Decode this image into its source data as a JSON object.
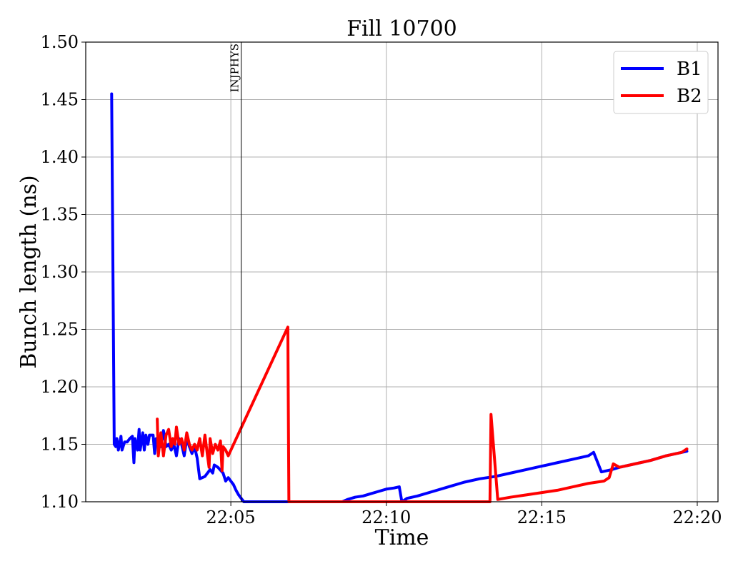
{
  "chart_data": {
    "type": "line",
    "title": "Fill 10700",
    "xlabel": "Time",
    "ylabel": "Bunch length (ns)",
    "xlim": [
      "22:00:20",
      "22:20:40"
    ],
    "ylim": [
      1.1,
      1.5
    ],
    "grid": true,
    "legend_position": "top-right",
    "x_ticks": [
      "22:05",
      "22:10",
      "22:15",
      "22:20"
    ],
    "y_ticks": [
      "1.10",
      "1.15",
      "1.20",
      "1.25",
      "1.30",
      "1.35",
      "1.40",
      "1.45",
      "1.50"
    ],
    "markers": [
      {
        "label": "INJPHYS",
        "x": "22:05:20"
      }
    ],
    "series": [
      {
        "name": "B1",
        "color": "#0000ff",
        "points": [
          [
            "22:01:10",
            1.455
          ],
          [
            "22:01:15",
            1.15
          ],
          [
            "22:01:18",
            1.148
          ],
          [
            "22:01:20",
            1.155
          ],
          [
            "22:01:23",
            1.145
          ],
          [
            "22:01:28",
            1.157
          ],
          [
            "22:01:30",
            1.145
          ],
          [
            "22:01:35",
            1.152
          ],
          [
            "22:01:40",
            1.152
          ],
          [
            "22:01:45",
            1.155
          ],
          [
            "22:01:50",
            1.157
          ],
          [
            "22:01:53",
            1.134
          ],
          [
            "22:01:55",
            1.155
          ],
          [
            "22:02:00",
            1.145
          ],
          [
            "22:02:03",
            1.163
          ],
          [
            "22:02:05",
            1.145
          ],
          [
            "22:02:10",
            1.16
          ],
          [
            "22:02:13",
            1.145
          ],
          [
            "22:02:16",
            1.158
          ],
          [
            "22:02:20",
            1.15
          ],
          [
            "22:02:23",
            1.158
          ],
          [
            "22:02:30",
            1.158
          ],
          [
            "22:02:33",
            1.142
          ],
          [
            "22:02:36",
            1.155
          ],
          [
            "22:02:40",
            1.15
          ],
          [
            "22:02:45",
            1.148
          ],
          [
            "22:02:50",
            1.162
          ],
          [
            "22:02:55",
            1.148
          ],
          [
            "22:03:00",
            1.15
          ],
          [
            "22:03:05",
            1.145
          ],
          [
            "22:03:10",
            1.15
          ],
          [
            "22:03:15",
            1.14
          ],
          [
            "22:03:20",
            1.155
          ],
          [
            "22:03:25",
            1.15
          ],
          [
            "22:03:30",
            1.14
          ],
          [
            "22:03:35",
            1.155
          ],
          [
            "22:03:40",
            1.148
          ],
          [
            "22:03:45",
            1.142
          ],
          [
            "22:03:50",
            1.148
          ],
          [
            "22:03:55",
            1.138
          ],
          [
            "22:04:00",
            1.12
          ],
          [
            "22:04:10",
            1.122
          ],
          [
            "22:04:20",
            1.128
          ],
          [
            "22:04:25",
            1.125
          ],
          [
            "22:04:28",
            1.132
          ],
          [
            "22:04:35",
            1.13
          ],
          [
            "22:04:45",
            1.125
          ],
          [
            "22:04:50",
            1.118
          ],
          [
            "22:04:55",
            1.121
          ],
          [
            "22:05:00",
            1.118
          ],
          [
            "22:05:05",
            1.115
          ],
          [
            "22:05:10",
            1.11
          ],
          [
            "22:05:15",
            1.106
          ],
          [
            "22:05:20",
            1.103
          ],
          [
            "22:05:25",
            1.1
          ],
          [
            "22:08:35",
            1.1
          ],
          [
            "22:08:45",
            1.102
          ],
          [
            "22:09:00",
            1.104
          ],
          [
            "22:09:15",
            1.105
          ],
          [
            "22:09:30",
            1.107
          ],
          [
            "22:09:45",
            1.109
          ],
          [
            "22:10:00",
            1.111
          ],
          [
            "22:10:15",
            1.112
          ],
          [
            "22:10:25",
            1.113
          ],
          [
            "22:10:30",
            1.1
          ],
          [
            "22:10:40",
            1.103
          ],
          [
            "22:11:00",
            1.105
          ],
          [
            "22:11:30",
            1.109
          ],
          [
            "22:12:00",
            1.113
          ],
          [
            "22:12:30",
            1.117
          ],
          [
            "22:13:00",
            1.12
          ],
          [
            "22:13:30",
            1.122
          ],
          [
            "22:14:00",
            1.125
          ],
          [
            "22:14:30",
            1.128
          ],
          [
            "22:15:00",
            1.131
          ],
          [
            "22:15:30",
            1.134
          ],
          [
            "22:16:00",
            1.137
          ],
          [
            "22:16:30",
            1.14
          ],
          [
            "22:16:40",
            1.143
          ],
          [
            "22:16:55",
            1.126
          ],
          [
            "22:17:15",
            1.128
          ],
          [
            "22:17:30",
            1.13
          ],
          [
            "22:18:00",
            1.133
          ],
          [
            "22:18:30",
            1.136
          ],
          [
            "22:19:00",
            1.14
          ],
          [
            "22:19:30",
            1.143
          ],
          [
            "22:19:40",
            1.144
          ]
        ]
      },
      {
        "name": "B2",
        "color": "#ff0000",
        "points": [
          [
            "22:02:38",
            1.172
          ],
          [
            "22:02:40",
            1.14
          ],
          [
            "22:02:45",
            1.16
          ],
          [
            "22:02:50",
            1.14
          ],
          [
            "22:02:55",
            1.158
          ],
          [
            "22:03:00",
            1.163
          ],
          [
            "22:03:05",
            1.148
          ],
          [
            "22:03:08",
            1.155
          ],
          [
            "22:03:12",
            1.15
          ],
          [
            "22:03:15",
            1.165
          ],
          [
            "22:03:20",
            1.15
          ],
          [
            "22:03:25",
            1.155
          ],
          [
            "22:03:30",
            1.145
          ],
          [
            "22:03:35",
            1.16
          ],
          [
            "22:03:40",
            1.15
          ],
          [
            "22:03:45",
            1.145
          ],
          [
            "22:03:50",
            1.15
          ],
          [
            "22:03:55",
            1.145
          ],
          [
            "22:04:00",
            1.155
          ],
          [
            "22:04:05",
            1.14
          ],
          [
            "22:04:10",
            1.158
          ],
          [
            "22:04:15",
            1.14
          ],
          [
            "22:04:18",
            1.13
          ],
          [
            "22:04:20",
            1.155
          ],
          [
            "22:04:25",
            1.142
          ],
          [
            "22:04:30",
            1.15
          ],
          [
            "22:04:35",
            1.145
          ],
          [
            "22:04:40",
            1.153
          ],
          [
            "22:04:43",
            1.127
          ],
          [
            "22:04:45",
            1.148
          ],
          [
            "22:04:50",
            1.145
          ],
          [
            "22:04:55",
            1.14
          ],
          [
            "22:06:50",
            1.252
          ],
          [
            "22:06:52",
            1.1
          ],
          [
            "22:13:20",
            1.1
          ],
          [
            "22:13:22",
            1.176
          ],
          [
            "22:13:35",
            1.102
          ],
          [
            "22:14:00",
            1.104
          ],
          [
            "22:14:30",
            1.106
          ],
          [
            "22:15:00",
            1.108
          ],
          [
            "22:15:30",
            1.11
          ],
          [
            "22:16:00",
            1.113
          ],
          [
            "22:16:30",
            1.116
          ],
          [
            "22:17:00",
            1.118
          ],
          [
            "22:17:10",
            1.121
          ],
          [
            "22:17:18",
            1.133
          ],
          [
            "22:17:30",
            1.13
          ],
          [
            "22:18:00",
            1.133
          ],
          [
            "22:18:30",
            1.136
          ],
          [
            "22:19:00",
            1.14
          ],
          [
            "22:19:30",
            1.143
          ],
          [
            "22:19:40",
            1.146
          ]
        ]
      }
    ]
  }
}
